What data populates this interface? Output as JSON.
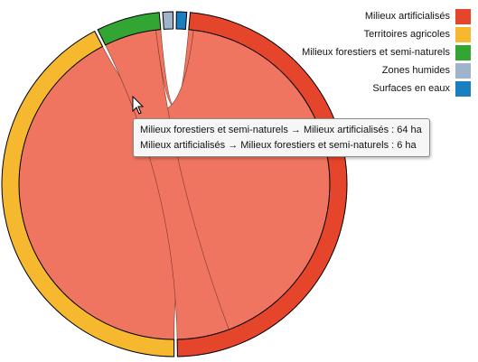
{
  "chart_data": {
    "type": "chord",
    "groups": [
      {
        "name": "Milieux artificialisés",
        "color": "#e5452b"
      },
      {
        "name": "Territoires agricoles",
        "color": "#f5b82e"
      },
      {
        "name": "Milieux forestiers et semi-naturels",
        "color": "#33a532"
      },
      {
        "name": "Zones humides",
        "color": "#9fb3cc"
      },
      {
        "name": "Surfaces en eaux",
        "color": "#1a7fc1"
      }
    ],
    "matrix": [
      [
        0,
        0,
        6,
        0,
        0
      ],
      [
        500,
        0,
        0,
        0,
        0
      ],
      [
        64,
        0,
        0,
        0,
        0
      ],
      [
        0,
        0,
        0,
        0,
        0
      ],
      [
        0,
        0,
        0,
        0,
        0
      ]
    ],
    "ribbon_color": "#ef7560",
    "legend_position": "top-right"
  },
  "tooltip": {
    "line1": "Milieux forestiers et semi-naturels → Milieux artificialisés : 64 ha",
    "line2": "Milieux artificialisés → Milieux forestiers et semi-naturels : 6 ha"
  }
}
